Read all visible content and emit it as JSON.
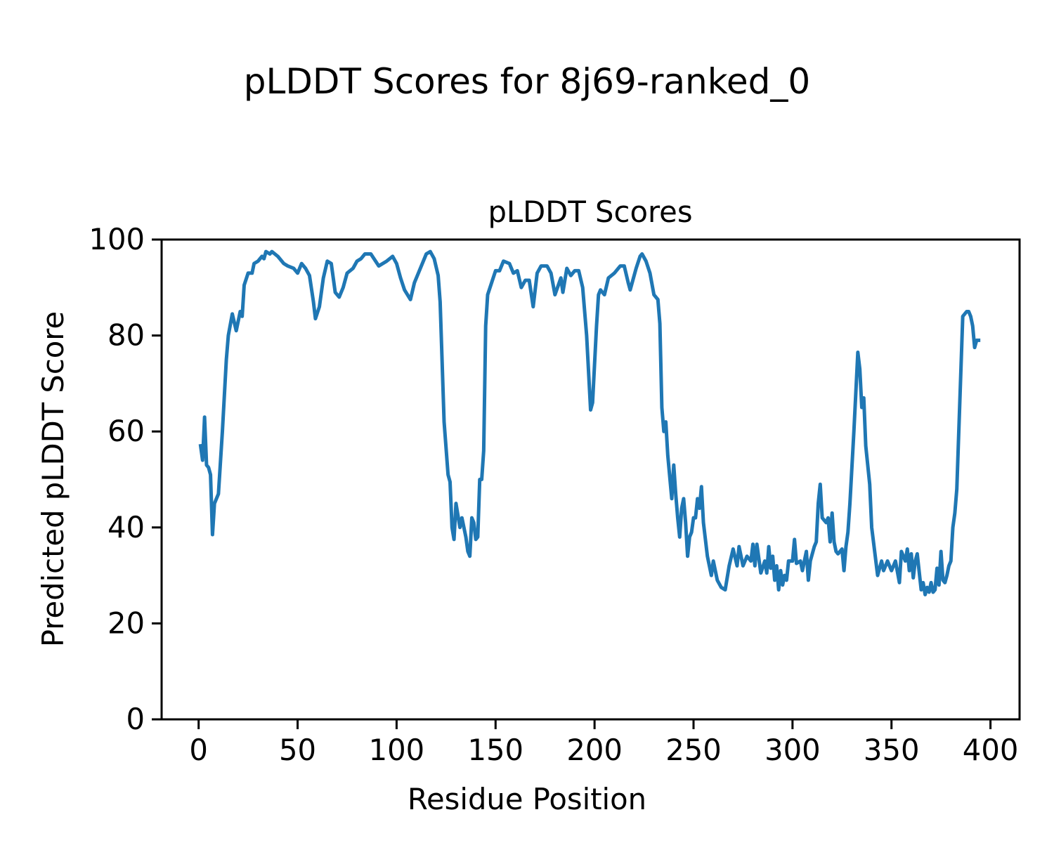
{
  "chart_data": {
    "type": "line",
    "title": "pLDDT Scores for 8j69-ranked_0",
    "subtitle": "pLDDT Scores",
    "xlabel": "Residue Position",
    "ylabel": "Predicted pLDDT Score",
    "color": "#1f77b4",
    "xlim": [
      -18.7,
      414.7
    ],
    "ylim": [
      0,
      100
    ],
    "xticks": [
      0,
      50,
      100,
      150,
      200,
      250,
      300,
      350,
      400
    ],
    "yticks": [
      0,
      20,
      40,
      60,
      80,
      100
    ],
    "x": [
      1,
      2,
      3,
      4,
      5,
      6,
      7,
      8,
      10,
      12,
      14,
      15,
      17,
      19,
      21,
      22,
      23,
      25,
      27,
      28,
      30,
      32,
      33,
      34,
      36,
      37,
      40,
      43,
      45,
      48,
      50,
      52,
      54,
      56,
      58,
      59,
      61,
      63,
      65,
      67,
      69,
      71,
      73,
      75,
      78,
      80,
      82,
      84,
      87,
      91,
      95,
      98,
      100,
      102,
      104,
      107,
      109,
      111,
      113,
      115,
      117,
      119,
      121,
      122,
      124,
      126,
      127,
      128,
      129,
      130,
      132,
      133,
      135,
      136,
      137,
      138,
      139,
      140,
      141,
      142,
      143,
      144,
      145,
      146,
      148,
      150,
      152,
      154,
      157,
      159,
      161,
      163,
      165,
      167,
      169,
      171,
      173,
      176,
      178,
      180,
      183,
      184,
      186,
      188,
      190,
      192,
      194,
      196,
      198,
      199,
      201,
      202,
      203,
      205,
      207,
      210,
      213,
      215,
      217,
      218,
      221,
      223,
      224,
      226,
      228,
      230,
      232,
      233,
      234,
      235,
      236,
      237,
      239,
      240,
      241,
      242,
      243,
      244,
      245,
      246,
      247,
      248,
      249,
      250,
      251,
      252,
      253,
      254,
      255,
      257,
      259,
      260,
      262,
      264,
      266,
      268,
      270,
      272,
      273,
      275,
      277,
      279,
      280,
      281,
      282,
      284,
      286,
      287,
      288,
      289,
      290,
      291,
      292,
      293,
      294,
      295,
      296,
      297,
      298,
      300,
      301,
      302,
      304,
      305,
      307,
      308,
      309,
      311,
      312,
      313,
      314,
      315,
      317,
      318,
      319,
      320,
      321,
      322,
      323,
      325,
      326,
      327,
      328,
      329,
      331,
      333,
      334,
      335,
      336,
      337,
      339,
      340,
      343,
      345,
      346,
      348,
      350,
      352,
      354,
      355,
      357,
      358,
      359,
      360,
      361,
      362,
      363,
      365,
      366,
      367,
      368,
      369,
      370,
      371,
      372,
      373,
      374,
      375,
      376,
      377,
      378,
      379,
      380,
      381,
      382,
      383,
      384,
      385,
      386,
      388,
      389,
      390,
      391,
      392,
      393,
      394
    ],
    "values": [
      57,
      54,
      63,
      53,
      52.5,
      51,
      38.5,
      45,
      47,
      60,
      75,
      80,
      84.5,
      81,
      85,
      84,
      90.5,
      93,
      93,
      95,
      95.5,
      96.5,
      96,
      97.5,
      97,
      97.5,
      96.5,
      95,
      94.5,
      94,
      93,
      95,
      94,
      92.5,
      87,
      83.5,
      86,
      92,
      95.5,
      95,
      89,
      88,
      90,
      93,
      94,
      95.5,
      96,
      97,
      97,
      94.5,
      95.5,
      96.5,
      95,
      92,
      89.5,
      87.5,
      91,
      93,
      95,
      97,
      97.5,
      96,
      92.5,
      87,
      62,
      51,
      49.5,
      40,
      37.5,
      45,
      40,
      42,
      38,
      35,
      34,
      42,
      41,
      37.5,
      38,
      50,
      50,
      56,
      82,
      88.5,
      91,
      93.5,
      93.5,
      95.5,
      95,
      93,
      93.5,
      90,
      91.5,
      91.5,
      86,
      93,
      94.5,
      94.5,
      93,
      88.5,
      92,
      89,
      94,
      92.5,
      93.5,
      93.5,
      90,
      80,
      64.5,
      66,
      82,
      88.5,
      89.5,
      88.5,
      92,
      93,
      94.5,
      94.5,
      91,
      89.5,
      94,
      96.5,
      97,
      95.5,
      93,
      88.5,
      87.5,
      82.5,
      65,
      60,
      62,
      55,
      46,
      53,
      47,
      42,
      38,
      44,
      46,
      41,
      34,
      38,
      39,
      42,
      42,
      46,
      44,
      48.5,
      41,
      34,
      30,
      33,
      29,
      27.5,
      27,
      32,
      35.5,
      32,
      36,
      32,
      34,
      33,
      36.5,
      32,
      36.5,
      30.5,
      33,
      30.5,
      36,
      31.5,
      34,
      29,
      32,
      27,
      31,
      28,
      30,
      29,
      33,
      33,
      37.5,
      32.5,
      33,
      31,
      35,
      29,
      33,
      36,
      37,
      45,
      49,
      42,
      41,
      42,
      37,
      43,
      37,
      35,
      34.5,
      35.5,
      31,
      36,
      39,
      45,
      60,
      76.5,
      73,
      65,
      67,
      57,
      49,
      40,
      30,
      33,
      31,
      33,
      31,
      33,
      28.5,
      35,
      33,
      35.5,
      31,
      34.5,
      29.5,
      33,
      34.5,
      27,
      28.5,
      26,
      27.5,
      26.5,
      28.5,
      26.5,
      27,
      31.5,
      28,
      35,
      29,
      28.5,
      30,
      32,
      33,
      40,
      43,
      48,
      60,
      72,
      84,
      85,
      85,
      84,
      82,
      77.5,
      79,
      79
    ]
  }
}
